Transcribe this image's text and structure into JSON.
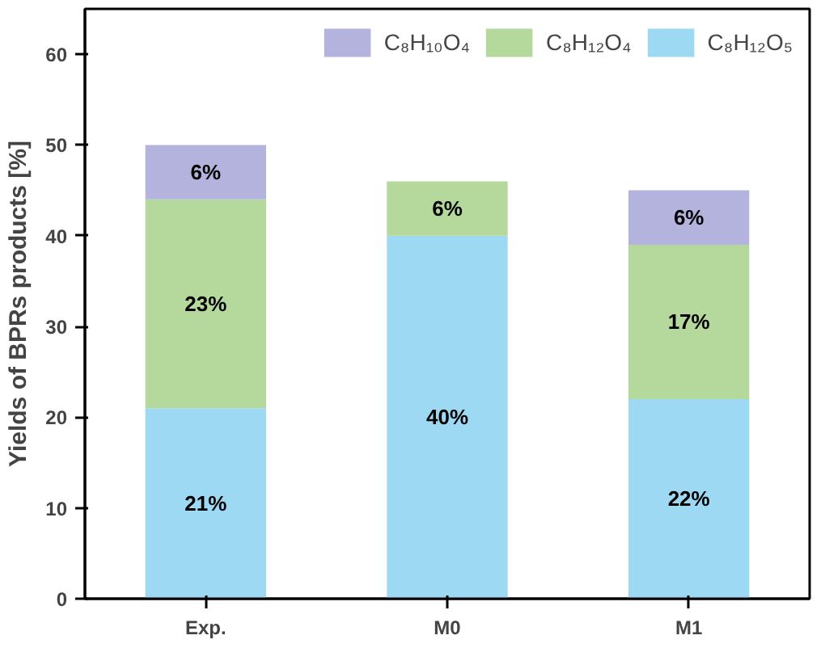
{
  "chart_data": {
    "type": "bar",
    "stacked": true,
    "ylabel": "Yields of BPRs products [%]",
    "categories": [
      "Exp.",
      "M0",
      "M1"
    ],
    "series": [
      {
        "name": "C₈H₁₂O₅",
        "color": "#9dd9f3",
        "values": [
          21,
          40,
          22
        ],
        "value_labels": [
          "21%",
          "40%",
          "22%"
        ]
      },
      {
        "name": "C₈H₁₂O₄",
        "color": "#b5d99c",
        "values": [
          23,
          6,
          17
        ],
        "value_labels": [
          "23%",
          "6%",
          "17%"
        ]
      },
      {
        "name": "C₈H₁₀O₄",
        "color": "#b3b3de",
        "values": [
          6,
          null,
          6
        ],
        "value_labels": [
          "6%",
          null,
          "6%"
        ]
      }
    ],
    "ylim": [
      0,
      65
    ],
    "yticks": [
      0,
      10,
      20,
      30,
      40,
      50,
      60
    ],
    "legend": "top right",
    "grid": false
  }
}
